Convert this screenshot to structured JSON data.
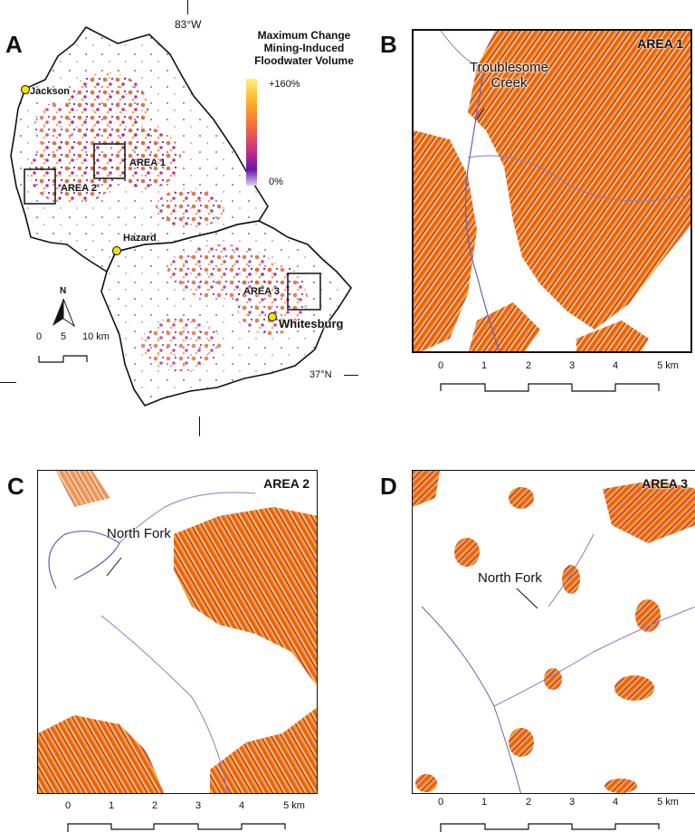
{
  "panel_a": {
    "letter": "A",
    "lon_label": "83°W",
    "lat_label": "37°N",
    "legend": {
      "title_lines": [
        "Maximum Change",
        "Mining-Induced",
        "Floodwater Volume"
      ],
      "max_label": "+160%",
      "min_label": "0%"
    },
    "places": {
      "jackson": "Jackson",
      "hazard": "Hazard",
      "whitesburg": "Whitesburg"
    },
    "areas": {
      "area1": "AREA 1",
      "area2": "AREA 2",
      "area3": "AREA 3"
    },
    "north_label": "N",
    "scale": {
      "labels": [
        "0",
        "5",
        "10 km"
      ]
    }
  },
  "panel_b": {
    "letter": "B",
    "title": "AREA 1",
    "river_label": "Troublesome\nCreek",
    "river_line1": "Troublesome",
    "river_line2": "Creek",
    "scale_labels": [
      "0",
      "1",
      "2",
      "3",
      "4",
      "5 km"
    ]
  },
  "panel_c": {
    "letter": "C",
    "title": "AREA 2",
    "river_label": "North Fork",
    "scale_labels": [
      "0",
      "1",
      "2",
      "3",
      "4",
      "5 km"
    ]
  },
  "panel_d": {
    "letter": "D",
    "title": "AREA 3",
    "river_label": "North Fork",
    "scale_labels": [
      "0",
      "1",
      "2",
      "3",
      "4",
      "5 km"
    ]
  },
  "colors": {
    "high": "#ffc21a",
    "mid": "#f0692c",
    "low": "#b2278f",
    "lowest": "#5c1a9e",
    "river": "#6a5fb5",
    "outline": "#111111",
    "marker": "#f5e100"
  }
}
